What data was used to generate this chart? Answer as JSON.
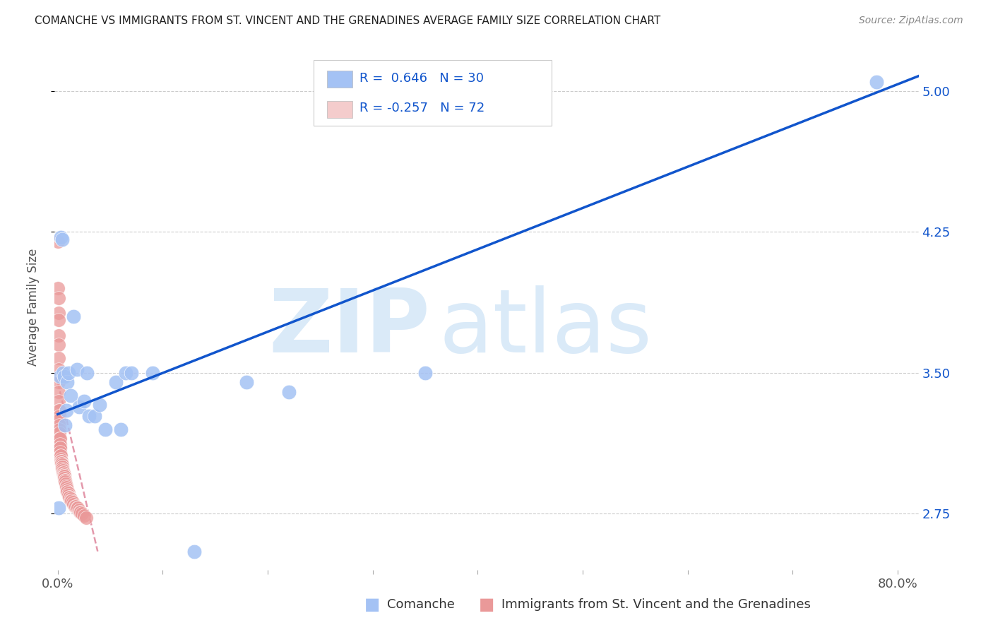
{
  "title": "COMANCHE VS IMMIGRANTS FROM ST. VINCENT AND THE GRENADINES AVERAGE FAMILY SIZE CORRELATION CHART",
  "source": "Source: ZipAtlas.com",
  "ylabel": "Average Family Size",
  "xlim": [
    -0.003,
    0.82
  ],
  "ylim": [
    2.45,
    5.25
  ],
  "yticks": [
    2.75,
    3.5,
    4.25,
    5.0
  ],
  "xticks": [
    0.0,
    0.1,
    0.2,
    0.3,
    0.4,
    0.5,
    0.6,
    0.7,
    0.8
  ],
  "xticklabels": [
    "0.0%",
    "",
    "",
    "",
    "",
    "",
    "",
    "",
    "80.0%"
  ],
  "legend_label1": "Comanche",
  "legend_label2": "Immigrants from St. Vincent and the Grenadines",
  "R1": "0.646",
  "N1": "30",
  "R2": "-0.257",
  "N2": "72",
  "blue_dot_color": "#a4c2f4",
  "pink_dot_color": "#ea9999",
  "blue_line_color": "#1155cc",
  "pink_line_color": "#cc4466",
  "blue_legend_color": "#a4c2f4",
  "pink_legend_color": "#f4cccc",
  "blue_x": [
    0.001,
    0.002,
    0.003,
    0.004,
    0.005,
    0.006,
    0.007,
    0.008,
    0.009,
    0.01,
    0.012,
    0.015,
    0.018,
    0.02,
    0.025,
    0.028,
    0.03,
    0.035,
    0.04,
    0.045,
    0.055,
    0.06,
    0.065,
    0.07,
    0.09,
    0.13,
    0.18,
    0.22,
    0.35,
    0.78
  ],
  "blue_y": [
    2.78,
    3.48,
    4.22,
    4.21,
    3.5,
    3.48,
    3.22,
    3.3,
    3.45,
    3.5,
    3.38,
    3.8,
    3.52,
    3.32,
    3.35,
    3.5,
    3.27,
    3.27,
    3.33,
    3.2,
    3.45,
    3.2,
    3.5,
    3.5,
    3.5,
    2.55,
    3.45,
    3.4,
    3.5,
    5.05
  ],
  "pink_x": [
    0.0003,
    0.0004,
    0.0005,
    0.0005,
    0.0006,
    0.0006,
    0.0007,
    0.0007,
    0.0008,
    0.0009,
    0.001,
    0.001,
    0.001,
    0.0012,
    0.0013,
    0.0014,
    0.0015,
    0.0016,
    0.0017,
    0.0018,
    0.002,
    0.002,
    0.002,
    0.0022,
    0.0024,
    0.0025,
    0.003,
    0.003,
    0.003,
    0.0032,
    0.0034,
    0.0035,
    0.004,
    0.004,
    0.0042,
    0.0045,
    0.005,
    0.005,
    0.0052,
    0.0055,
    0.006,
    0.006,
    0.0062,
    0.0065,
    0.007,
    0.007,
    0.0072,
    0.0075,
    0.008,
    0.0082,
    0.009,
    0.009,
    0.0092,
    0.01,
    0.01,
    0.011,
    0.011,
    0.012,
    0.012,
    0.013,
    0.014,
    0.015,
    0.016,
    0.017,
    0.018,
    0.019,
    0.02,
    0.021,
    0.022,
    0.023,
    0.025,
    0.027
  ],
  "pink_y": [
    4.2,
    3.95,
    3.9,
    3.82,
    3.78,
    3.7,
    3.65,
    3.58,
    3.52,
    3.45,
    3.4,
    3.35,
    3.3,
    3.3,
    3.27,
    3.25,
    3.22,
    3.2,
    3.18,
    3.15,
    3.15,
    3.12,
    3.1,
    3.1,
    3.08,
    3.06,
    3.06,
    3.04,
    3.03,
    3.03,
    3.02,
    3.02,
    3.01,
    3.0,
    3.0,
    2.99,
    2.98,
    2.97,
    2.97,
    2.96,
    2.96,
    2.95,
    2.95,
    2.94,
    2.93,
    2.93,
    2.92,
    2.91,
    2.9,
    2.89,
    2.88,
    2.87,
    2.87,
    2.86,
    2.85,
    2.84,
    2.84,
    2.83,
    2.82,
    2.82,
    2.81,
    2.8,
    2.79,
    2.79,
    2.78,
    2.78,
    2.77,
    2.76,
    2.76,
    2.75,
    2.74,
    2.73
  ],
  "blue_line_x0": 0.0,
  "blue_line_y0": 3.28,
  "blue_line_x1": 0.82,
  "blue_line_y1": 5.08,
  "pink_line_x0": 0.0,
  "pink_line_y0": 3.45,
  "pink_line_x1": 0.038,
  "pink_line_y1": 2.55
}
